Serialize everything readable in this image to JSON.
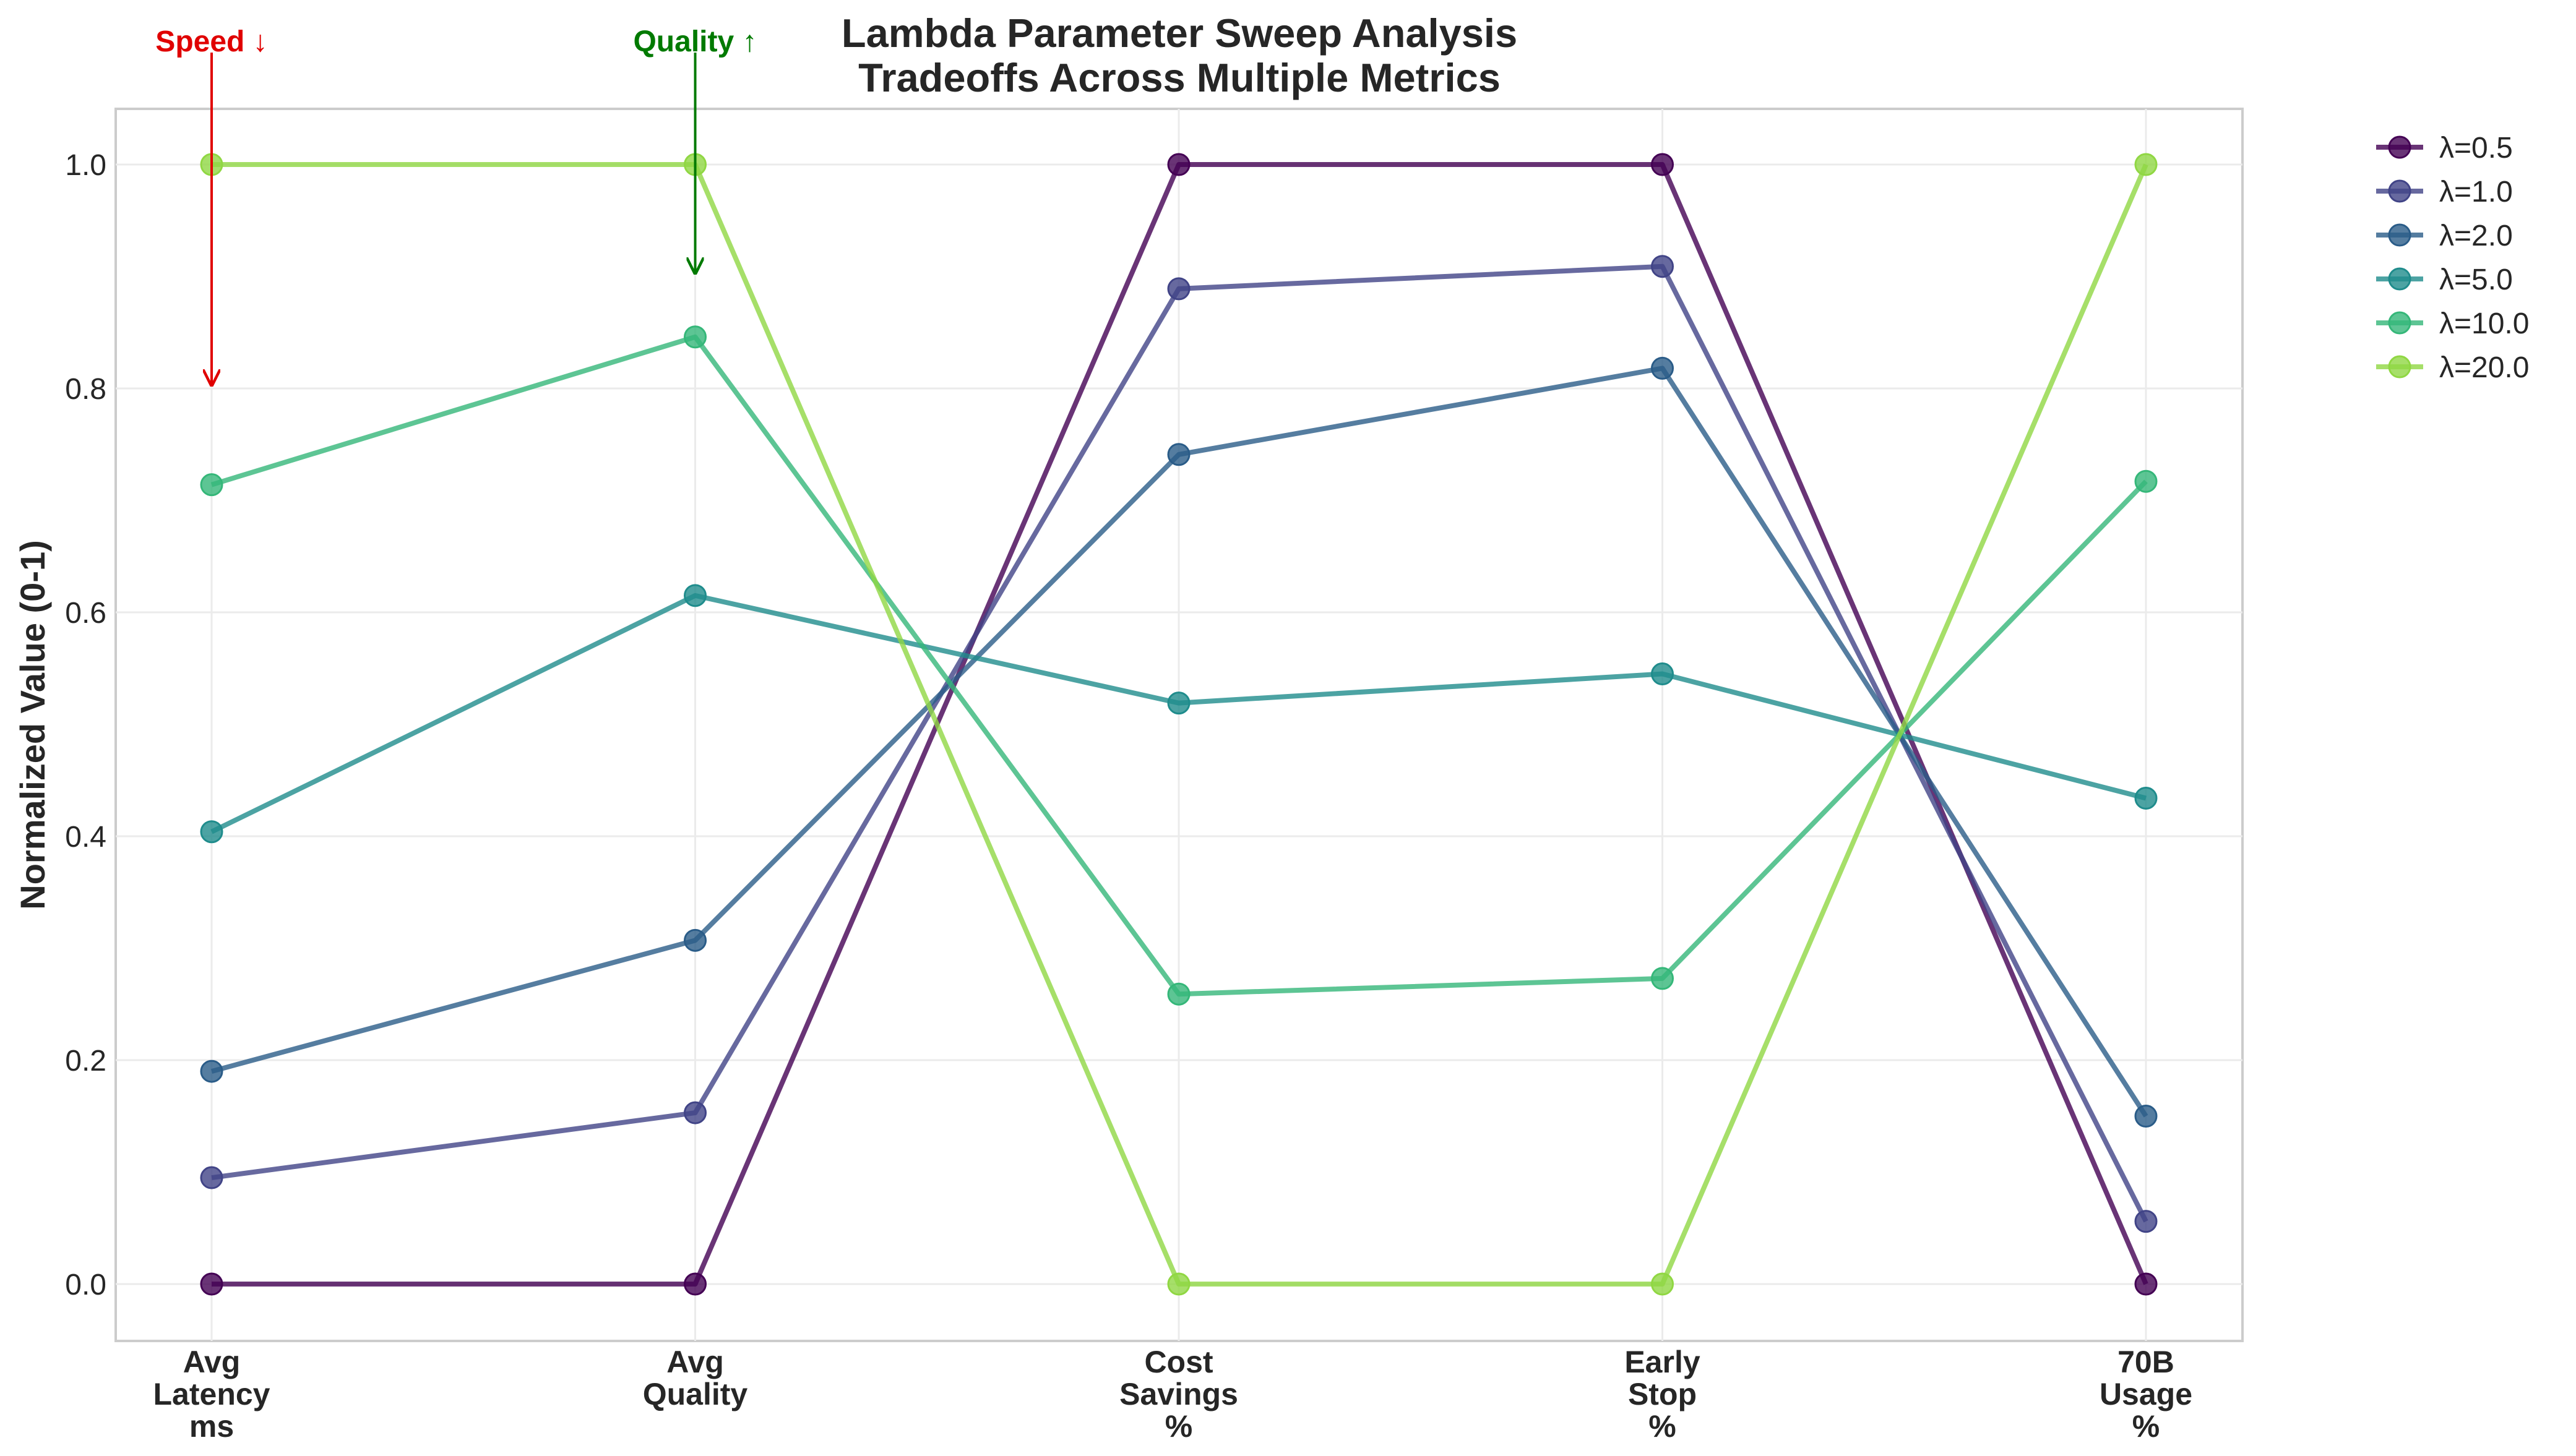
{
  "chart_data": {
    "type": "line",
    "title": "Lambda Parameter Sweep Analysis",
    "subtitle": "Tradeoffs Across Multiple Metrics",
    "ylabel": "Normalized Value (0-1)",
    "ylim": [
      -0.05,
      1.05
    ],
    "yticks": [
      "0.0",
      "0.2",
      "0.4",
      "0.6",
      "0.8",
      "1.0"
    ],
    "categories": [
      [
        "Avg",
        "Latency",
        "ms"
      ],
      [
        "Avg",
        "Quality"
      ],
      [
        "Cost",
        "Savings",
        "%"
      ],
      [
        "Early",
        "Stop",
        "%"
      ],
      [
        "70B",
        "Usage",
        "%"
      ]
    ],
    "grid": true,
    "legend_position": "outside-top-right",
    "series": [
      {
        "name": "λ=0.5",
        "color": "#440154",
        "values": [
          0.0,
          0.0,
          1.0,
          1.0,
          0.0
        ]
      },
      {
        "name": "λ=1.0",
        "color": "#414487",
        "values": [
          0.095,
          0.153,
          0.889,
          0.909,
          0.056
        ]
      },
      {
        "name": "λ=2.0",
        "color": "#2a5c88",
        "values": [
          0.19,
          0.307,
          0.741,
          0.818,
          0.15
        ]
      },
      {
        "name": "λ=5.0",
        "color": "#1f8c8c",
        "values": [
          0.404,
          0.615,
          0.519,
          0.545,
          0.434
        ]
      },
      {
        "name": "λ=10.0",
        "color": "#35b779",
        "values": [
          0.714,
          0.846,
          0.259,
          0.273,
          0.717
        ]
      },
      {
        "name": "λ=20.0",
        "color": "#90d743",
        "values": [
          1.0,
          1.0,
          0.0,
          0.0,
          1.0
        ]
      }
    ],
    "annotations": [
      {
        "text": "Speed ↓",
        "color": "#e00000",
        "category_index": 0,
        "arrow_from": 1.1,
        "arrow_to": 0.8
      },
      {
        "text": "Quality ↑",
        "color": "#007a00",
        "category_index": 1,
        "arrow_from": 1.1,
        "arrow_to": 0.9
      }
    ]
  }
}
